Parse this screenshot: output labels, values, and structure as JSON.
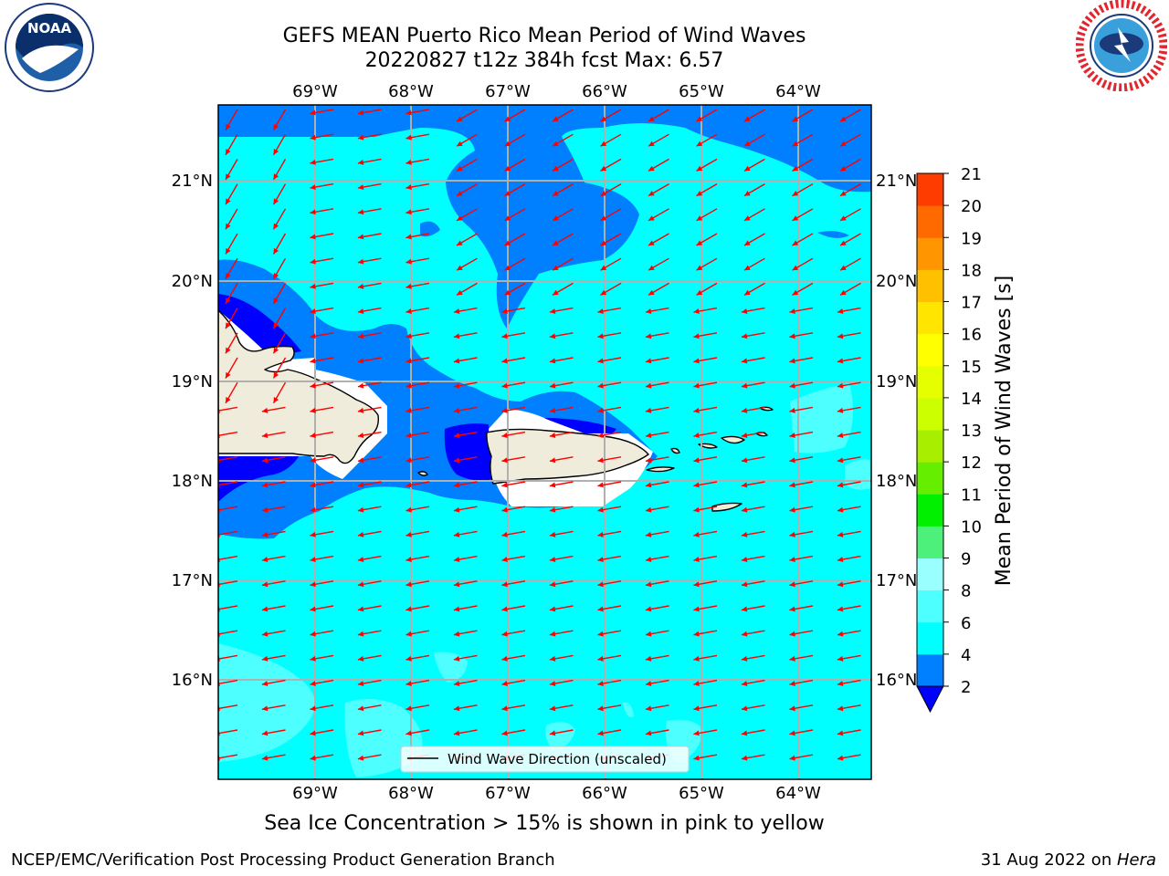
{
  "header": {
    "title_line1": "GEFS MEAN Puerto Rico Mean Period of Wind Waves",
    "title_line2": "20220827 t12z 384h fcst   Max: 6.57"
  },
  "logos": {
    "left": {
      "text": "NOAA",
      "ring_text": "NATIONAL OCEANIC AND ATMOSPHERIC ADMINISTRATION · U.S. DEPARTMENT OF COMMERCE"
    },
    "right": {
      "ring_text": "NATIONAL WEATHER SERVICE"
    }
  },
  "map": {
    "lon_ticks": [
      "69°W",
      "68°W",
      "67°W",
      "66°W",
      "65°W",
      "64°W"
    ],
    "lat_ticks": [
      "21°N",
      "20°N",
      "19°N",
      "18°N",
      "17°N",
      "16°N"
    ],
    "legend_label": "Wind Wave Direction (unscaled)",
    "colors": {
      "land": "#efecdc",
      "arrow": "#ff0000",
      "level_2_4": "#0080ff",
      "level_4_6": "#00ffff",
      "level_6_8": "#4dffff",
      "level_0_2": "#0000ff",
      "grid": "#b0b0b0"
    }
  },
  "colorbar": {
    "label": "Mean Period of Wind Waves [s]",
    "ticks": [
      "2",
      "4",
      "6",
      "8",
      "9",
      "10",
      "11",
      "12",
      "13",
      "14",
      "15",
      "16",
      "17",
      "18",
      "19",
      "20",
      "21"
    ],
    "colors": [
      "#0080ff",
      "#00ffff",
      "#4dffff",
      "#99ffff",
      "#4cf07a",
      "#00f000",
      "#66ee00",
      "#a8ee00",
      "#ccff00",
      "#e6ff00",
      "#ffff00",
      "#ffe500",
      "#ffc000",
      "#ff9500",
      "#ff6a00",
      "#ff3c00",
      "#ff0000"
    ]
  },
  "footer": {
    "caption": "Sea Ice Concentration > 15% is shown in pink to yellow",
    "left": "NCEP/EMC/Verification Post Processing Product Generation Branch",
    "right_prefix": "31 Aug 2022 on ",
    "right_machine": "Hera"
  }
}
